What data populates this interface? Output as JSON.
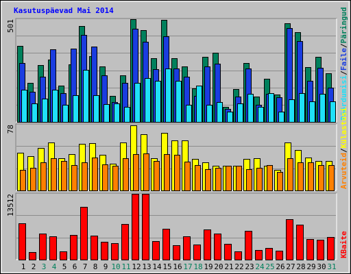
{
  "chart_data": {
    "type": "bar",
    "title": "Kasutuspäevad Mai 2014",
    "separator": "/",
    "categories": [
      "1",
      "2",
      "3",
      "4",
      "5",
      "6",
      "7",
      "8",
      "9",
      "10",
      "11",
      "12",
      "13",
      "14",
      "15",
      "16",
      "17",
      "18",
      "19",
      "20",
      "21",
      "22",
      "23",
      "24",
      "25",
      "26",
      "27",
      "28",
      "29",
      "30",
      "31"
    ],
    "category_colors": [
      "#000000",
      "#000000",
      "#00805c",
      "#00805c",
      "#000000",
      "#000000",
      "#000000",
      "#000000",
      "#000000",
      "#00805c",
      "#00805c",
      "#000000",
      "#000000",
      "#000000",
      "#000000",
      "#000000",
      "#00805c",
      "#00805c",
      "#000000",
      "#000000",
      "#000000",
      "#000000",
      "#000000",
      "#00805c",
      "#00805c",
      "#000000",
      "#000000",
      "#000000",
      "#000000",
      "#000000",
      "#00805c"
    ],
    "grid": true,
    "panels": [
      {
        "ylim": [
          0,
          501
        ],
        "yticks": [
          501
        ],
        "series": [
          {
            "name": "Päringud",
            "color": "#00805c",
            "values": [
              370,
              192,
              278,
              305,
              178,
              281,
              467,
              322,
              271,
              127,
              226,
              501,
              449,
              312,
              497,
              309,
              271,
              165,
              316,
              336,
              72,
              161,
              288,
              124,
              209,
              134,
              480,
              439,
              267,
              316,
              236
            ]
          },
          {
            "name": "Faile",
            "color": "#1a3de0",
            "values": [
              288,
              147,
              219,
              353,
              141,
              357,
              425,
              367,
              226,
              96,
              189,
              453,
              391,
              257,
              418,
              261,
              219,
              127,
              271,
              285,
              62,
              124,
              261,
              82,
              137,
              120,
              456,
              394,
              199,
              264,
              168
            ]
          },
          {
            "name": "Pöördumisi",
            "color": "#20e0f8",
            "values": [
              158,
              89,
              113,
              158,
              82,
              130,
              254,
              130,
              86,
              89,
              75,
              192,
              213,
              199,
              261,
              202,
              82,
              178,
              82,
              96,
              51,
              89,
              137,
              72,
              141,
              51,
              110,
              141,
              99,
              137,
              99
            ]
          }
        ]
      },
      {
        "ylim": [
          0,
          78
        ],
        "yticks": [
          78
        ],
        "series": [
          {
            "name": "Külastusi",
            "color": "#ffff00",
            "values": [
              45,
              41,
              50,
              57,
              38,
              43,
              55,
              56,
              42,
              32,
              57,
              77,
              67,
              38,
              68,
              59,
              59,
              37,
              33,
              29,
              29,
              29,
              37,
              38,
              29,
              24,
              57,
              48,
              39,
              35,
              35
            ]
          },
          {
            "name": "Arvuteid",
            "color": "#ff8000",
            "values": [
              24,
              27,
              33,
              38,
              35,
              30,
              33,
              39,
              31,
              29,
              38,
              43,
              44,
              35,
              43,
              42,
              34,
              30,
              25,
              27,
              29,
              29,
              25,
              27,
              30,
              22,
              38,
              33,
              33,
              30,
              30
            ]
          }
        ]
      },
      {
        "ylim": [
          0,
          13512
        ],
        "yticks": [
          13512
        ],
        "series": [
          {
            "name": "KBaite",
            "color": "#ff0000",
            "values": [
              7410,
              1598,
              5376,
              4795,
              1744,
              5085,
              10897,
              4940,
              3632,
              3342,
              7265,
              13512,
              13512,
              3778,
              6393,
              2906,
              4795,
              3051,
              6248,
              5376,
              3197,
              1744,
              5957,
              2034,
              2325,
              1889,
              8282,
              7120,
              4214,
              4068,
              4650
            ]
          }
        ]
      }
    ]
  }
}
